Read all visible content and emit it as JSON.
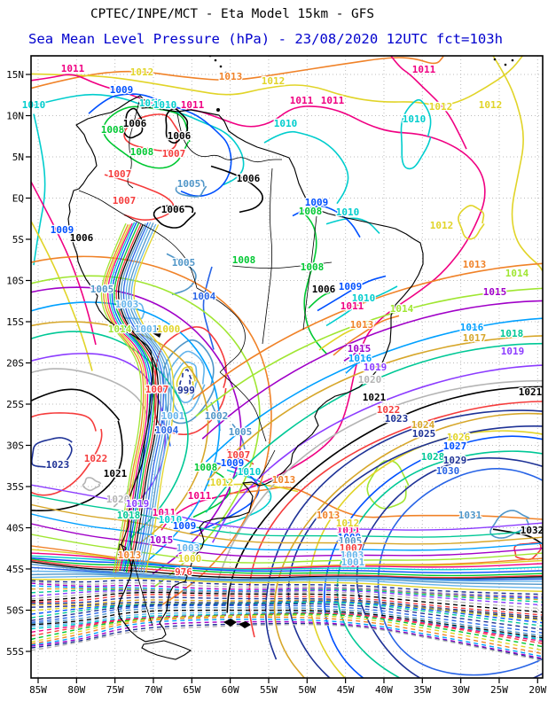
{
  "header": {
    "line1": "CPTEC/INPE/MCT -  Eta Model 15km - GFS",
    "line2": "Sea Mean Level Pressure (hPa) - 23/08/2020 12UTC fct=103h",
    "line1_color": "#000000",
    "line2_color": "#0000cd"
  },
  "map": {
    "frame_color": "#000000",
    "grid_color": "#bcbcbc",
    "coast_color": "#000000",
    "unit": "hPa",
    "lat_ticks": [
      "15N",
      "10N",
      "5N",
      "EQ",
      "5S",
      "10S",
      "15S",
      "20S",
      "25S",
      "30S",
      "35S",
      "40S",
      "45S",
      "50S",
      "55S"
    ],
    "lon_ticks": [
      "85W",
      "80W",
      "75W",
      "70W",
      "65W",
      "60W",
      "55W",
      "50W",
      "45W",
      "40W",
      "35W",
      "30W",
      "25W",
      "20W"
    ],
    "dashed_below": 1000,
    "isobar_colors": {
      "969": "#b4b4b4",
      "970": "#1e3296",
      "971": "#a000c8",
      "972": "#00a0ff",
      "973": "#f08228",
      "974": "#e1d428",
      "975": "#00c832",
      "976": "#f53c3c",
      "977": "#f00082",
      "978": "#00cdcd",
      "979": "#64b4eb",
      "980": "#000000",
      "981": "#5096c8",
      "982": "#2864e6",
      "983": "#1e3296",
      "984": "#00c896",
      "985": "#0050ff",
      "986": "#e1d428",
      "987": "#1e3296",
      "988": "#d7a72b",
      "989": "#1e3296",
      "990": "#f53c3c",
      "991": "#000000",
      "992": "#b4b4b4",
      "993": "#8c3cff",
      "994": "#00c896",
      "995": "#d7a72b",
      "996": "#00a0ff",
      "997": "#a000c8",
      "998": "#b4b4b4",
      "999": "#1e3296",
      "1000": "#e1d428",
      "1001": "#64b4eb",
      "1002": "#5096c8",
      "1003": "#64b4eb",
      "1004": "#2864e6",
      "1005": "#5096c8",
      "1006": "#000000",
      "1007": "#f53c3c",
      "1008": "#00c832",
      "1009": "#0050ff",
      "1010": "#00cdcd",
      "1011": "#f00082",
      "1012": "#e1d428",
      "1013": "#f08228",
      "1014": "#a0e632",
      "1015": "#a000c8",
      "1016": "#00a0ff",
      "1017": "#d7a72b",
      "1018": "#00c896",
      "1019": "#8c3cff",
      "1020": "#b4b4b4",
      "1021": "#000000",
      "1022": "#f53c3c",
      "1023": "#1e3296",
      "1024": "#d7a72b",
      "1025": "#1e3296",
      "1026": "#e1d428",
      "1027": "#0050ff",
      "1028": "#00c896",
      "1029": "#1e3296",
      "1030": "#2864e6",
      "1031": "#5096c8",
      "1032": "#000000",
      "1033": "#f53c3c"
    },
    "contour_labels": [
      [
        1011,
        82,
        81
      ],
      [
        1012,
        160,
        85
      ],
      [
        1013,
        260,
        90
      ],
      [
        1012,
        308,
        95
      ],
      [
        1011,
        340,
        117
      ],
      [
        1009,
        137,
        105
      ],
      [
        1010,
        170,
        120
      ],
      [
        1011,
        217,
        122
      ],
      [
        1010,
        38,
        122
      ],
      [
        1010,
        186,
        122
      ],
      [
        1008,
        127,
        150
      ],
      [
        1006,
        152,
        143
      ],
      [
        1006,
        202,
        157
      ],
      [
        1007,
        196,
        177
      ],
      [
        1008,
        160,
        175
      ],
      [
        1007,
        135,
        200
      ],
      [
        1005,
        213,
        211
      ],
      [
        1007,
        140,
        230
      ],
      [
        1006,
        195,
        240
      ],
      [
        1006,
        280,
        205
      ],
      [
        1011,
        375,
        117
      ],
      [
        1010,
        467,
        138
      ],
      [
        1010,
        322,
        143
      ],
      [
        1009,
        357,
        232
      ],
      [
        1010,
        392,
        243
      ],
      [
        1008,
        350,
        242
      ],
      [
        1011,
        478,
        82
      ],
      [
        1012,
        497,
        124
      ],
      [
        1012,
        553,
        122
      ],
      [
        1012,
        498,
        258
      ],
      [
        1005,
        207,
        300
      ],
      [
        1008,
        275,
        297
      ],
      [
        1003,
        143,
        347
      ],
      [
        1004,
        230,
        338
      ],
      [
        1005,
        115,
        330
      ],
      [
        1009,
        70,
        263
      ],
      [
        1006,
        92,
        272
      ],
      [
        1014,
        135,
        375
      ],
      [
        1001,
        165,
        375
      ],
      [
        1000,
        190,
        375
      ],
      [
        1007,
        177,
        443
      ],
      [
        999,
        210,
        444
      ],
      [
        1001,
        195,
        473
      ],
      [
        1002,
        244,
        473
      ],
      [
        1004,
        188,
        489
      ],
      [
        1005,
        271,
        491
      ],
      [
        1007,
        269,
        517
      ],
      [
        1009,
        262,
        526
      ],
      [
        1008,
        232,
        531
      ],
      [
        1010,
        281,
        536
      ],
      [
        1012,
        250,
        548
      ],
      [
        1011,
        225,
        563
      ],
      [
        1013,
        320,
        545
      ],
      [
        1011,
        185,
        582
      ],
      [
        1010,
        192,
        590
      ],
      [
        1009,
        208,
        597
      ],
      [
        1013,
        370,
        585
      ],
      [
        1008,
        352,
        305
      ],
      [
        1006,
        365,
        330
      ],
      [
        1009,
        395,
        327
      ],
      [
        1010,
        410,
        340
      ],
      [
        1011,
        397,
        349
      ],
      [
        1013,
        408,
        370
      ],
      [
        1014,
        453,
        352
      ],
      [
        1015,
        405,
        397
      ],
      [
        1016,
        406,
        408
      ],
      [
        1013,
        535,
        302
      ],
      [
        1014,
        583,
        312
      ],
      [
        1015,
        558,
        333
      ],
      [
        1016,
        532,
        373
      ],
      [
        1017,
        535,
        385
      ],
      [
        1018,
        577,
        380
      ],
      [
        1019,
        578,
        400
      ],
      [
        1019,
        423,
        418
      ],
      [
        1020,
        417,
        432
      ],
      [
        1021,
        422,
        452
      ],
      [
        1022,
        438,
        466
      ],
      [
        1023,
        447,
        476
      ],
      [
        1024,
        477,
        483
      ],
      [
        1025,
        478,
        493
      ],
      [
        1026,
        517,
        497
      ],
      [
        1027,
        513,
        507
      ],
      [
        1028,
        488,
        519
      ],
      [
        1029,
        513,
        523
      ],
      [
        1030,
        505,
        535
      ],
      [
        1031,
        530,
        585
      ],
      [
        1021,
        598,
        446
      ],
      [
        1032,
        600,
        602
      ],
      [
        1023,
        65,
        528
      ],
      [
        1022,
        108,
        521
      ],
      [
        1021,
        130,
        538
      ],
      [
        1020,
        133,
        567
      ],
      [
        1019,
        155,
        572
      ],
      [
        1018,
        145,
        585
      ],
      [
        1015,
        182,
        613
      ],
      [
        1013,
        146,
        630
      ],
      [
        1003,
        212,
        622
      ],
      [
        1000,
        214,
        634
      ],
      [
        976,
        207,
        649
      ],
      [
        1011,
        393,
        602
      ],
      [
        1009,
        394,
        610
      ],
      [
        1005,
        395,
        614
      ],
      [
        1007,
        396,
        622
      ],
      [
        1003,
        397,
        630
      ],
      [
        1001,
        398,
        638
      ],
      [
        1012,
        392,
        594
      ]
    ]
  }
}
